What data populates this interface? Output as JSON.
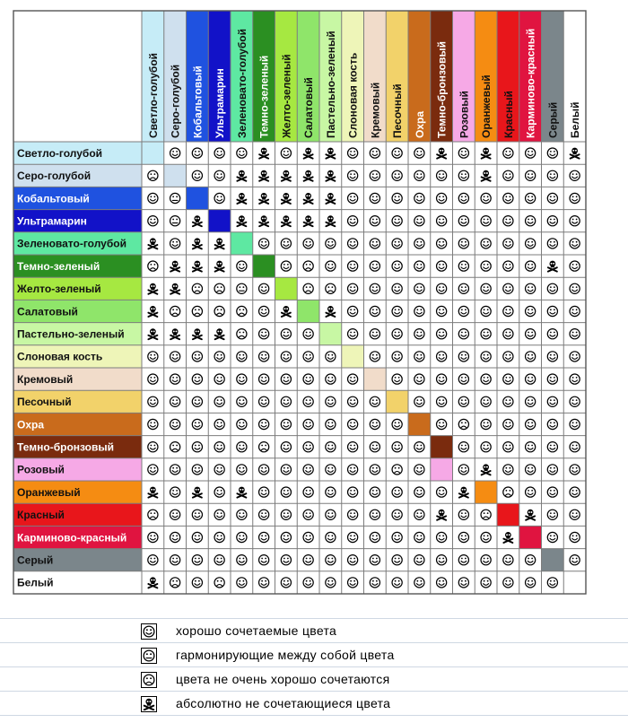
{
  "colors": [
    {
      "name": "Светло-голубой",
      "hex": "#c6ecf7",
      "text": "dark"
    },
    {
      "name": "Серо-голубой",
      "hex": "#cfe0ee",
      "text": "dark"
    },
    {
      "name": "Кобальтовый",
      "hex": "#1f52e0",
      "text": "light"
    },
    {
      "name": "Ультрамарин",
      "hex": "#1212c8",
      "text": "light"
    },
    {
      "name": "Зеленовато-голубой",
      "hex": "#5ee8a2",
      "text": "dark"
    },
    {
      "name": "Темно-зеленый",
      "hex": "#2b8f22",
      "text": "light"
    },
    {
      "name": "Желто-зеленый",
      "hex": "#a6e841",
      "text": "dark"
    },
    {
      "name": "Салатовый",
      "hex": "#8fe56a",
      "text": "dark"
    },
    {
      "name": "Пастельно-зеленый",
      "hex": "#c8f7a4",
      "text": "dark"
    },
    {
      "name": "Слоновая кость",
      "hex": "#eef5b8",
      "text": "dark"
    },
    {
      "name": "Кремовый",
      "hex": "#f1dcca",
      "text": "dark"
    },
    {
      "name": "Песочный",
      "hex": "#f2d26a",
      "text": "dark"
    },
    {
      "name": "Охра",
      "hex": "#c96b1c",
      "text": "light"
    },
    {
      "name": "Темно-бронзовый",
      "hex": "#7a2b0e",
      "text": "light"
    },
    {
      "name": "Розовый",
      "hex": "#f6a9e6",
      "text": "dark"
    },
    {
      "name": "Оранжевый",
      "hex": "#f58c12",
      "text": "dark"
    },
    {
      "name": "Красный",
      "hex": "#e8161b",
      "text": "dark"
    },
    {
      "name": "Карминово-красный",
      "hex": "#e01440",
      "text": "light"
    },
    {
      "name": "Серый",
      "hex": "#7b868b",
      "text": "dark"
    },
    {
      "name": "Белый",
      "hex": "#ffffff",
      "text": "dark"
    }
  ],
  "matrix": [
    "-SSSSKSKKSSSSKSKSSSK",
    "F-SSKKKKKSSSSSSKSSSS",
    "SN-SKKKKKSSSSSSSSSSS",
    "SNK-KKKKKSSSSSSSSSSS",
    "KSKK-SSSSSSSSSSSSSSS",
    "FKKKS-SFSSSSSSSSSSKS",
    "KKFFNS-FFSSSSSSSSSSS",
    "KFFFFSK-KSSSSSSSSSSS",
    "KKKKFSSS-SSSSSSSSSSS",
    "SSSSSSSSS-SSSSSSSSSS",
    "SSSSSSSSSS-SSSSSSSSS",
    "SSSSSSSSSSS-SSSSSSSS",
    "SSSSSSSSSSSS-SFSSSSS",
    "SFSSSFSSSSSSS-SSSSSS",
    "SSSSSSSSSSSFS-SKSSSS",
    "KSKSKSSSSSSSSSK-FSSS",
    "FSSSSSSSSSSSSKSF-KSS",
    "SSSSSSSSSSSSSSSSK-SS",
    "SSSSSSSSSSSSSSSSSS-S",
    "KFSFSSSSSSSSSSSSSSS-"
  ],
  "legend": [
    {
      "type": "S",
      "icon": "smile-icon",
      "label": "хорошо сочетаемые цвета"
    },
    {
      "type": "N",
      "icon": "neutral-face-icon",
      "label": "гармонирующие между собой цвета"
    },
    {
      "type": "F",
      "icon": "frown-icon",
      "label": "цвета не очень хорошо сочетаются"
    },
    {
      "type": "K",
      "icon": "skull-crossbones-icon",
      "label": "абсолютно не сочетающиеся цвета"
    }
  ]
}
